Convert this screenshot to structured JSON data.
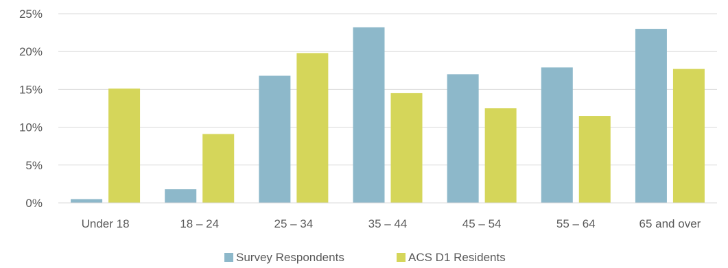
{
  "chart_data": {
    "type": "bar",
    "categories": [
      "Under 18",
      "18 – 24",
      "25 – 34",
      "35 – 44",
      "45 – 54",
      "55 – 64",
      "65 and over"
    ],
    "series": [
      {
        "name": "Survey Respondents",
        "color": "#8db8ca",
        "values": [
          0.5,
          1.8,
          16.8,
          23.2,
          17.0,
          17.9,
          23.0
        ]
      },
      {
        "name": "ACS D1 Residents",
        "color": "#d5d65a",
        "values": [
          15.1,
          9.1,
          19.8,
          14.5,
          12.5,
          11.5,
          17.7
        ]
      }
    ],
    "y_ticks": [
      "0%",
      "5%",
      "10%",
      "15%",
      "20%",
      "25%"
    ],
    "ylim": [
      0,
      25
    ],
    "grid": true,
    "legend_position": "bottom-center",
    "title": "",
    "xlabel": "",
    "ylabel": ""
  }
}
